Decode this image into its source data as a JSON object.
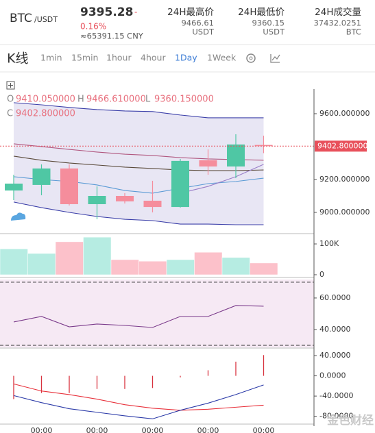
{
  "header": {
    "pair": "BTC",
    "quote": "/USDT",
    "price": "9395.28",
    "change_sign": "-",
    "change": "0.16%",
    "cny": "≈65391.15 CNY",
    "stats": [
      {
        "label": "24H最高价",
        "value": "9466.61",
        "unit": "USDT"
      },
      {
        "label": "24H最低价",
        "value": "9360.15",
        "unit": "USDT"
      },
      {
        "label": "24H成交量",
        "value": "37432.0251",
        "unit": "BTC"
      }
    ]
  },
  "toolbar": {
    "title": "K线",
    "tabs": [
      "1min",
      "15min",
      "1hour",
      "4hour",
      "1Day",
      "1Week"
    ],
    "active": "1Day"
  },
  "legend": {
    "items": [
      {
        "key": "O",
        "value": "9410.050000"
      },
      {
        "key": "H",
        "value": "9466.610000"
      },
      {
        "key": "L",
        "value": "9360.150000"
      },
      {
        "key": "C",
        "value": "9402.800000"
      }
    ]
  },
  "watermark": "金色财经",
  "chart_data": [
    {
      "type": "candlestick",
      "up_color": "#4fc7a4",
      "down_color": "#f58d9c",
      "band_fill": "#e8e6f4",
      "open": [
        9133,
        9167,
        9267,
        9050,
        9100,
        9071,
        9033,
        9317,
        9279,
        9410.05
      ],
      "high": [
        9229,
        9292,
        9292,
        9158,
        9117,
        9192,
        9325,
        9383,
        9475,
        9466.61
      ],
      "low": [
        9075,
        9104,
        9042,
        8958,
        9054,
        9000,
        9029,
        9229,
        9208,
        9360.15
      ],
      "close": [
        9175,
        9267,
        9050,
        9100,
        9067,
        9033,
        9313,
        9279,
        9413,
        9402.8
      ],
      "series": [
        {
          "color": "#3a3ea8",
          "values": [
            9667,
            9654,
            9638,
            9625,
            9617,
            9613,
            9592,
            9575,
            9575,
            9575
          ]
        },
        {
          "color": "#3a3ea8",
          "values": [
            9063,
            9029,
            9000,
            8975,
            8958,
            8950,
            8929,
            8929,
            8925,
            8925
          ]
        },
        {
          "color": "#b0567e",
          "values": [
            9417,
            9400,
            9383,
            9367,
            9354,
            9346,
            9333,
            9325,
            9321,
            9317
          ]
        },
        {
          "color": "#5a4a3a",
          "values": [
            9342,
            9317,
            9300,
            9288,
            9275,
            9267,
            9258,
            9254,
            9254,
            9258
          ]
        },
        {
          "color": "#5b9bd5",
          "values": [
            9217,
            9200,
            9188,
            9167,
            9133,
            9117,
            9146,
            9175,
            9188,
            9208
          ]
        },
        {
          "color": "#9a7ec8",
          "values": [
            null,
            null,
            null,
            null,
            null,
            null,
            9117,
            9158,
            9217,
            9292
          ]
        }
      ],
      "band": [
        0,
        1
      ],
      "last_price": {
        "value": 9402.8,
        "label": "9402.800000"
      },
      "last_color": "#e8505b",
      "ylim": [
        8875,
        9854
      ],
      "yticks": [
        {
          "value": 9000,
          "label": "9000.000000"
        },
        {
          "value": 9200,
          "label": "9200.000000"
        },
        {
          "value": 9600,
          "label": "9600.000000"
        }
      ]
    },
    {
      "type": "bar",
      "values": [
        84000,
        69000,
        107000,
        122000,
        49000,
        44000,
        49000,
        73000,
        56000,
        38000
      ],
      "colors": [
        "#b6ece2",
        "#b6ece2",
        "#fcc1ca",
        "#b6ece2",
        "#fcc1ca",
        "#fcc1ca",
        "#b6ece2",
        "#fcc1ca",
        "#b6ece2",
        "#fcc1ca"
      ],
      "ylim": [
        0,
        129000
      ],
      "yticks": [
        0,
        {
          "value": 100000,
          "label": "100K"
        }
      ]
    },
    {
      "type": "line",
      "background": "#f6e9f4",
      "levels": [
        70,
        30
      ],
      "series": [
        {
          "color": "#7a3a8a",
          "values": [
            44.8,
            48.3,
            41.7,
            43.5,
            42.6,
            41.3,
            48.3,
            48.3,
            55.2,
            54.8
          ]
        }
      ],
      "ylim": [
        28.7,
        71.7
      ],
      "yticks": [
        {
          "value": 60,
          "label": "60.0000"
        },
        {
          "value": 40,
          "label": "40.0000"
        }
      ]
    },
    {
      "type": "macd",
      "categories": [
        null,
        "00:00",
        null,
        "00:00",
        null,
        "00:00",
        null,
        "00:00",
        null,
        "00:00"
      ],
      "histogram": {
        "color": "#d8333f",
        "values": [
          -46,
          -34,
          -34,
          -26,
          -26,
          -24,
          -3,
          11,
          28,
          41
        ]
      },
      "series": [
        {
          "color": "#e8303a",
          "values": [
            -16,
            -30,
            -37,
            -46,
            -57,
            -64,
            -68,
            -66,
            -62,
            -58
          ]
        },
        {
          "color": "#2b3aa8",
          "values": [
            -39,
            -53,
            -65,
            -72,
            -79,
            -85,
            -68,
            -54,
            -37,
            -18
          ]
        }
      ],
      "ylim": [
        -94,
        49.5
      ],
      "yticks": [
        {
          "value": 40,
          "label": "40.0000"
        },
        {
          "value": 0,
          "label": "0.0000"
        },
        {
          "value": -40,
          "label": "-40.0000"
        },
        {
          "value": -80,
          "label": "-80.0000"
        }
      ]
    }
  ]
}
